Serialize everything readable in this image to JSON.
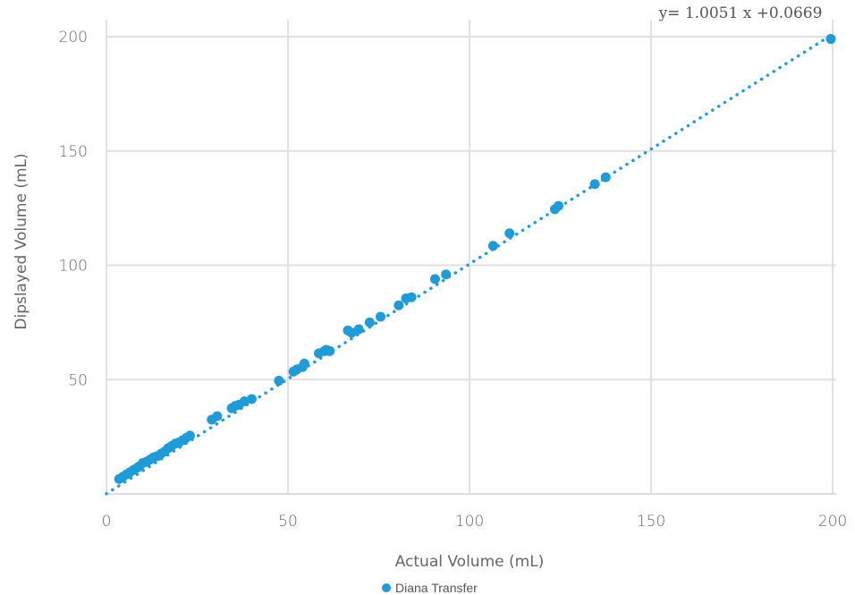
{
  "chart_data": {
    "type": "scatter",
    "xlabel": "Actual Volume (mL)",
    "ylabel": "Dipslayed Volume (mL)",
    "xlim": [
      0,
      200
    ],
    "ylim": [
      0,
      200
    ],
    "x_ticks": [
      0,
      50,
      100,
      150,
      200
    ],
    "y_ticks": [
      50,
      100,
      150,
      200
    ],
    "x_tick_labels": [
      "0",
      "50",
      "100",
      "150",
      "200"
    ],
    "y_tick_labels": [
      "50",
      "100",
      "150",
      "200"
    ],
    "grid": true,
    "legend_position": "bottom",
    "trendline": {
      "type": "linear",
      "slope": 1.0051,
      "intercept": 0.0669,
      "label": "y= 1.0051 x +0.0669",
      "style": "dotted"
    },
    "series": [
      {
        "name": "Diana Transfer",
        "color": "#1f9bd7",
        "points": [
          [
            3.5,
            6.5
          ],
          [
            4.5,
            7.5
          ],
          [
            5.5,
            8.5
          ],
          [
            6.5,
            9.5
          ],
          [
            7.5,
            10.5
          ],
          [
            8.5,
            11.5
          ],
          [
            9.0,
            12.0
          ],
          [
            10.0,
            13.5
          ],
          [
            11.0,
            14.0
          ],
          [
            12.0,
            15.0
          ],
          [
            13.0,
            16.0
          ],
          [
            14.0,
            16.5
          ],
          [
            15.0,
            17.5
          ],
          [
            16.0,
            18.5
          ],
          [
            17.0,
            20.0
          ],
          [
            18.0,
            21.0
          ],
          [
            19.0,
            22.0
          ],
          [
            20.0,
            22.5
          ],
          [
            21.0,
            23.5
          ],
          [
            22.0,
            24.5
          ],
          [
            23.0,
            25.5
          ],
          [
            29.0,
            32.5
          ],
          [
            30.5,
            34.0
          ],
          [
            34.5,
            37.5
          ],
          [
            35.5,
            38.5
          ],
          [
            36.5,
            39.0
          ],
          [
            38.0,
            40.5
          ],
          [
            40.0,
            41.5
          ],
          [
            47.5,
            49.5
          ],
          [
            51.5,
            53.5
          ],
          [
            52.5,
            54.5
          ],
          [
            54.0,
            55.5
          ],
          [
            54.5,
            57.0
          ],
          [
            58.5,
            61.5
          ],
          [
            60.0,
            62.5
          ],
          [
            60.5,
            63.0
          ],
          [
            61.5,
            62.5
          ],
          [
            66.5,
            71.5
          ],
          [
            67.5,
            70.5
          ],
          [
            69.5,
            72.0
          ],
          [
            72.5,
            75.0
          ],
          [
            75.5,
            77.5
          ],
          [
            80.5,
            82.5
          ],
          [
            82.5,
            85.5
          ],
          [
            84.0,
            86.0
          ],
          [
            90.5,
            94.0
          ],
          [
            93.5,
            96.0
          ],
          [
            106.5,
            108.5
          ],
          [
            111.0,
            114.0
          ],
          [
            123.5,
            124.5
          ],
          [
            124.5,
            126.0
          ],
          [
            134.5,
            135.5
          ],
          [
            137.5,
            138.5
          ],
          [
            199.5,
            199.0
          ]
        ]
      }
    ]
  }
}
